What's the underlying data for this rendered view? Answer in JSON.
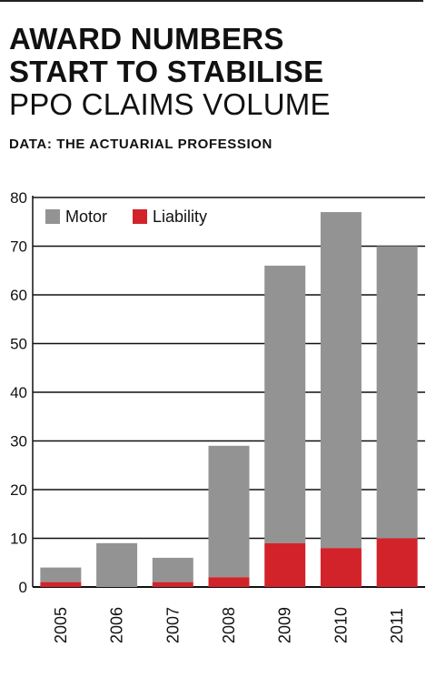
{
  "header": {
    "title_line1": "AWARD NUMBERS",
    "title_line2": "START TO STABILISE",
    "subtitle": "PPO CLAIMS VOLUME",
    "source": "DATA: THE ACTUARIAL PROFESSION"
  },
  "colors": {
    "motor": "#939393",
    "liability": "#d2232a",
    "axis": "#111111"
  },
  "chart_data": {
    "type": "bar",
    "stacked": true,
    "title": "PPO CLAIMS VOLUME",
    "categories": [
      "2005",
      "2006",
      "2007",
      "2008",
      "2009",
      "2010",
      "2011"
    ],
    "series": [
      {
        "name": "Motor",
        "values": [
          3,
          9,
          5,
          27,
          57,
          69,
          60
        ],
        "color": "#939393"
      },
      {
        "name": "Liability",
        "values": [
          1,
          0,
          1,
          2,
          9,
          8,
          10
        ],
        "color": "#d2232a"
      }
    ],
    "totals": [
      4,
      9,
      6,
      29,
      66,
      77,
      70
    ],
    "ylim": [
      0,
      80
    ],
    "yticks": [
      "0",
      "10",
      "20",
      "30",
      "40",
      "50",
      "60",
      "70",
      "80"
    ],
    "xlabel": "",
    "ylabel": "",
    "grid": true,
    "legend_position": "top-left"
  }
}
